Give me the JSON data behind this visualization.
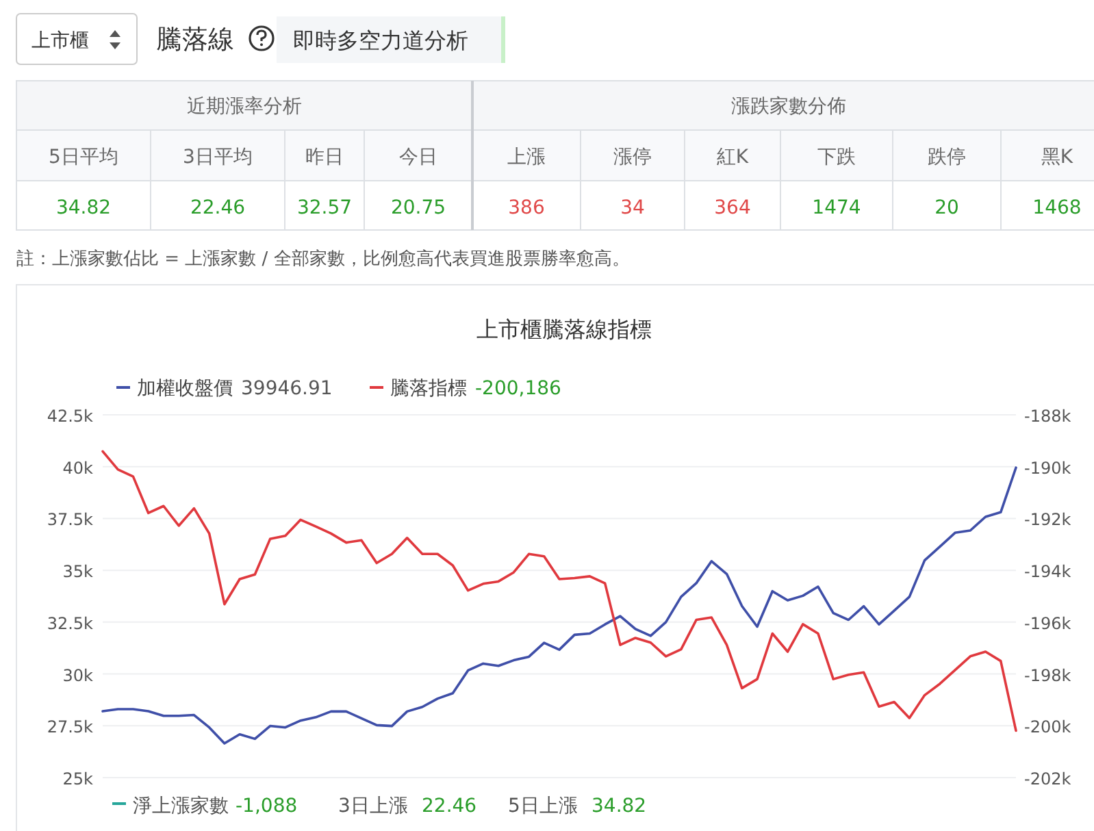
{
  "chart_data": [
    {
      "type": "other",
      "title": "騰落線",
      "subtitle": "即時多空力道分析",
      "annotations": [
        "上市櫃",
        "近期漲率分析",
        "漲跌家數分佈",
        "註：上漲家數佔比 = 上漲家數 / 全部家數，比例愈高代表買進股票勝率愈高。"
      ],
      "categories": [
        "5日平均",
        "3日平均",
        "昨日",
        "今日",
        "上漲",
        "漲停",
        "紅K",
        "下跌",
        "跌停",
        "黑K"
      ],
      "values": [
        34.82,
        22.46,
        32.57,
        20.75,
        386,
        34,
        364,
        1474,
        20,
        1468
      ],
      "data_labels": true
    },
    {
      "type": "line",
      "title": "上市櫃騰落線指標",
      "categories": [
        null,
        null,
        null,
        null,
        null,
        null,
        null,
        null,
        null,
        null,
        null,
        null,
        null,
        null,
        null,
        null,
        null,
        null,
        null,
        null,
        null,
        null,
        null,
        null,
        null,
        null,
        null,
        null,
        null,
        null,
        null,
        null,
        null,
        null,
        null,
        null,
        null,
        null,
        null,
        null,
        null,
        null,
        null,
        null,
        null,
        null,
        null,
        null,
        null,
        null,
        null,
        null,
        null,
        null,
        null,
        null,
        null,
        null,
        null,
        null,
        null
      ],
      "series": [
        {
          "name": "加權收盤價",
          "color": "#3f4fa8",
          "values": [
            28200,
            28300,
            28300,
            28200,
            27980,
            27980,
            28020,
            27420,
            26650,
            27090,
            26870,
            27490,
            27420,
            27750,
            27910,
            28190,
            28190,
            27860,
            27530,
            27490,
            28190,
            28410,
            28810,
            29070,
            30170,
            30500,
            30390,
            30660,
            30830,
            31500,
            31170,
            31890,
            31950,
            32390,
            32790,
            32170,
            31840,
            32500,
            33720,
            34380,
            35440,
            34820,
            33270,
            32280,
            33990,
            33550,
            33770,
            34210,
            32940,
            32610,
            33270,
            32390,
            33050,
            33720,
            35480,
            36140,
            36810,
            36920,
            37580,
            37800,
            39950
          ]
        },
        {
          "name": "騰落指標",
          "color": "#e0393e",
          "axis": "y2",
          "values": [
            -189410,
            -190110,
            -190380,
            -191790,
            -191520,
            -192280,
            -191610,
            -192580,
            -195310,
            -194340,
            -194160,
            -192790,
            -192670,
            -192050,
            -192310,
            -192580,
            -192930,
            -192840,
            -193720,
            -193370,
            -192750,
            -193370,
            -193370,
            -193810,
            -194780,
            -194520,
            -194430,
            -194080,
            -193370,
            -193460,
            -194340,
            -194300,
            -194230,
            -194500,
            -196880,
            -196610,
            -196790,
            -197320,
            -197050,
            -195910,
            -195820,
            -196880,
            -198550,
            -198200,
            -196440,
            -197140,
            -196080,
            -196440,
            -198200,
            -198030,
            -197940,
            -199260,
            -199080,
            -199700,
            -198820,
            -198380,
            -197850,
            -197320,
            -197140,
            -197500,
            -200190
          ]
        }
      ],
      "ylim": [
        25000,
        42500
      ],
      "yticks": [
        {
          "value": 25000,
          "label": "25k"
        },
        {
          "value": 27500,
          "label": "27.5k"
        },
        {
          "value": 30000,
          "label": "30k"
        },
        {
          "value": 32500,
          "label": "32.5k"
        },
        {
          "value": 35000,
          "label": "35k"
        },
        {
          "value": 37500,
          "label": "37.5k"
        },
        {
          "value": 40000,
          "label": "40k"
        },
        {
          "value": 42500,
          "label": "42.5k"
        }
      ],
      "y2lim": [
        -202000,
        -188000
      ],
      "y2ticks": [
        {
          "value": -202000,
          "label": "-202k"
        },
        {
          "value": -200000,
          "label": "-200k"
        },
        {
          "value": -198000,
          "label": "-198k"
        },
        {
          "value": -196000,
          "label": "-196k"
        },
        {
          "value": -194000,
          "label": "-194k"
        },
        {
          "value": -192000,
          "label": "-192k"
        },
        {
          "value": -190000,
          "label": "-190k"
        },
        {
          "value": -188000,
          "label": "-188k"
        }
      ],
      "grid": "y",
      "legend": "top",
      "annotations": [
        "39946.91",
        "-200,186",
        "淨上漲家數",
        "-1,088",
        "3日上漲",
        "22.46",
        "5日上漲",
        "34.82"
      ]
    }
  ]
}
